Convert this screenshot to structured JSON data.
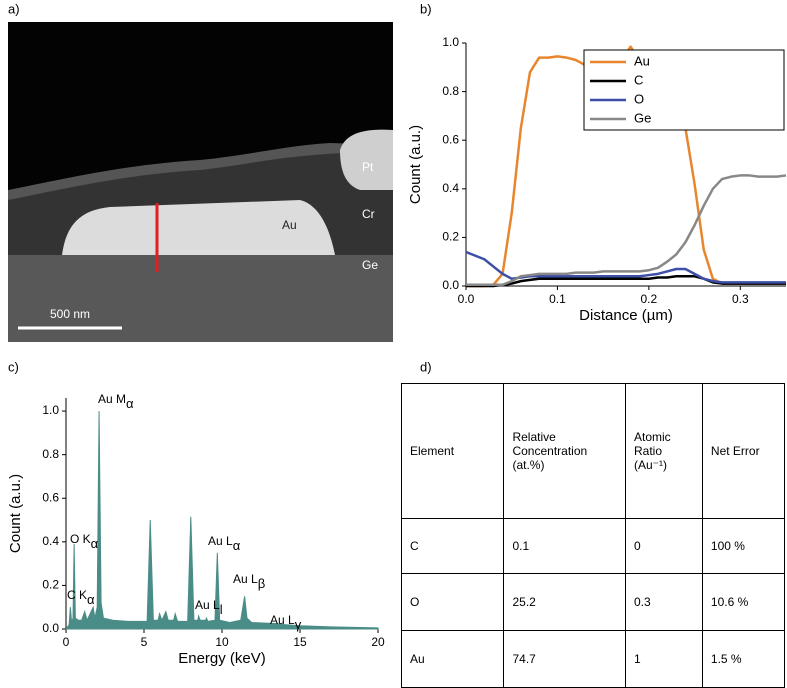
{
  "panel_labels": [
    "a)",
    "b)",
    "c)",
    "d)"
  ],
  "image": {
    "labels": [
      "Pt",
      "Cr",
      "Au",
      "Ge"
    ],
    "scale_bar": "500 nm"
  },
  "chart_data": [
    {
      "type": "line",
      "xlabel": "Distance (µm)",
      "ylabel": "Count (a.u.)",
      "x": [
        0,
        0.01,
        0.02,
        0.03,
        0.04,
        0.05,
        0.06,
        0.07,
        0.08,
        0.09,
        0.1,
        0.11,
        0.12,
        0.13,
        0.14,
        0.15,
        0.16,
        0.17,
        0.18,
        0.19,
        0.2,
        0.21,
        0.22,
        0.23,
        0.24,
        0.25,
        0.26,
        0.27,
        0.28,
        0.29,
        0.3,
        0.31,
        0.32,
        0.33,
        0.34,
        0.35
      ],
      "series": [
        {
          "name": "Au",
          "color": "#e8862f",
          "values": [
            0,
            0,
            0,
            0.005,
            0.05,
            0.3,
            0.65,
            0.88,
            0.94,
            0.94,
            0.945,
            0.94,
            0.93,
            0.91,
            0.96,
            0.95,
            0.92,
            0.93,
            0.985,
            0.93,
            0.95,
            0.93,
            0.88,
            0.78,
            0.65,
            0.42,
            0.15,
            0.03,
            0.01,
            0.01,
            0.01,
            0.01,
            0.01,
            0.01,
            0.01,
            0.01
          ]
        },
        {
          "name": "C",
          "color": "#000000",
          "values": [
            0,
            0,
            0,
            0,
            0.005,
            0.01,
            0.02,
            0.025,
            0.03,
            0.03,
            0.03,
            0.03,
            0.03,
            0.03,
            0.03,
            0.03,
            0.03,
            0.03,
            0.03,
            0.03,
            0.03,
            0.035,
            0.035,
            0.04,
            0.04,
            0.04,
            0.03,
            0.015,
            0.01,
            0.01,
            0.01,
            0.01,
            0.01,
            0.01,
            0.01,
            0.01
          ]
        },
        {
          "name": "O",
          "color": "#3d4fa8",
          "values": [
            0.14,
            0.125,
            0.11,
            0.08,
            0.05,
            0.03,
            0.035,
            0.04,
            0.04,
            0.04,
            0.04,
            0.04,
            0.04,
            0.04,
            0.04,
            0.04,
            0.04,
            0.04,
            0.04,
            0.04,
            0.045,
            0.05,
            0.06,
            0.07,
            0.07,
            0.05,
            0.03,
            0.02,
            0.015,
            0.015,
            0.015,
            0.015,
            0.015,
            0.015,
            0.015,
            0.015
          ]
        },
        {
          "name": "Ge",
          "color": "#888888",
          "values": [
            0.005,
            0.005,
            0.005,
            0.005,
            0.005,
            0.02,
            0.04,
            0.045,
            0.05,
            0.05,
            0.05,
            0.05,
            0.055,
            0.055,
            0.055,
            0.06,
            0.06,
            0.06,
            0.06,
            0.06,
            0.065,
            0.075,
            0.1,
            0.13,
            0.18,
            0.25,
            0.33,
            0.4,
            0.44,
            0.45,
            0.455,
            0.455,
            0.45,
            0.45,
            0.45,
            0.455
          ]
        }
      ],
      "xlim": [
        0,
        0.35
      ],
      "xticks": [
        {
          "value": 0,
          "label": "0.0"
        },
        0.1,
        0.2,
        0.3
      ],
      "ylim": [
        0,
        1
      ],
      "yticks": [
        {
          "value": 0,
          "label": "0.0"
        },
        0.2,
        0.4,
        0.6,
        0.8,
        {
          "value": 1,
          "label": "1.0"
        }
      ],
      "legend": "upper right"
    },
    {
      "type": "area",
      "xlabel": "Energy (keV)",
      "ylabel": "Count (a.u.)",
      "color": "#4a8c87",
      "x": [
        0,
        0.2,
        0.28,
        0.36,
        0.45,
        0.52,
        0.6,
        0.8,
        1.0,
        1.2,
        1.35,
        1.74,
        1.85,
        2.0,
        2.12,
        2.25,
        2.4,
        3.0,
        4.0,
        5.2,
        5.4,
        5.6,
        5.9,
        6.0,
        6.15,
        6.4,
        6.55,
        6.9,
        7.0,
        7.15,
        7.8,
        8.0,
        8.2,
        8.45,
        8.5,
        8.6,
        8.95,
        9.0,
        9.1,
        9.55,
        9.7,
        9.85,
        10.5,
        11.2,
        11.45,
        11.6,
        11.9,
        13.4,
        14.0,
        15,
        17,
        20
      ],
      "values": [
        0,
        0.02,
        0.1,
        0.03,
        0.05,
        0.39,
        0.05,
        0.04,
        0.04,
        0.08,
        0.04,
        0.1,
        0.05,
        0.1,
        1.0,
        0.12,
        0.05,
        0.04,
        0.035,
        0.035,
        0.5,
        0.04,
        0.04,
        0.07,
        0.04,
        0.08,
        0.04,
        0.04,
        0.07,
        0.035,
        0.035,
        0.515,
        0.04,
        0.04,
        0.06,
        0.04,
        0.04,
        0.05,
        0.035,
        0.04,
        0.35,
        0.04,
        0.03,
        0.04,
        0.15,
        0.05,
        0.03,
        0.025,
        0.02,
        0.015,
        0.01,
        0.005
      ],
      "xlim": [
        0,
        20
      ],
      "xticks": [
        0,
        5,
        10,
        15,
        20
      ],
      "ylim": [
        0,
        1.06
      ],
      "yticks": [
        {
          "value": 0,
          "label": "0.0"
        },
        0.2,
        0.4,
        0.6,
        0.8,
        {
          "value": 1,
          "label": "1.0"
        }
      ],
      "annotations": [
        {
          "text": "Au M",
          "sub": "α"
        },
        {
          "text": "O K",
          "sub": "α"
        },
        {
          "text": "C K",
          "sub": "α"
        },
        {
          "text": "Au L",
          "sub": "α"
        },
        {
          "text": "Au L",
          "sub": "β"
        },
        {
          "text": "Au L",
          "sub": "l"
        },
        {
          "text": "Au L",
          "sub": "γ"
        }
      ]
    }
  ],
  "table": {
    "header": [
      "Element",
      "Relative Concentration (at.%)",
      "Atomic Ratio (Au⁻¹)",
      "Net Error"
    ],
    "rows": [
      [
        "C",
        "0.1",
        "0",
        "100 %"
      ],
      [
        "O",
        "25.2",
        "0.3",
        "10.6 %"
      ],
      [
        "Au",
        "74.7",
        "1",
        "1.5 %"
      ]
    ]
  }
}
